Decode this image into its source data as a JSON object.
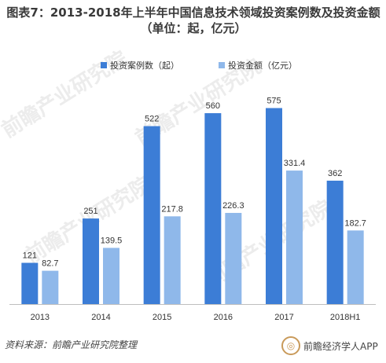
{
  "title": "图表7：2013-2018年上半年中国信息技术领域投资案例数及投资金额（单位：起，亿元）",
  "source": "资料来源：前瞻产业研究院整理",
  "brand": "前瞻经济学人APP",
  "colors": {
    "series1": "#3c7dd6",
    "series2": "#8fb8ea",
    "axis": "#bfbfbf",
    "label": "#333333"
  },
  "chart_data": {
    "type": "bar",
    "categories": [
      "2013",
      "2014",
      "2015",
      "2016",
      "2017",
      "2018H1"
    ],
    "series": [
      {
        "name": "投资案例数（起）",
        "values": [
          121,
          251,
          522,
          560,
          575,
          362
        ],
        "labels": [
          "121",
          "251",
          "522",
          "560",
          "575",
          "362"
        ]
      },
      {
        "name": "投资金额（亿元）",
        "values": [
          82.7,
          139.5,
          217.8,
          226.3,
          331.4,
          182.7
        ],
        "labels": [
          "82.7",
          "139.5",
          "217.8",
          "226.3",
          "331.4",
          "182.7"
        ]
      }
    ],
    "scales": [
      [
        0,
        650
      ],
      [
        0,
        550
      ]
    ],
    "legend_position": "top",
    "grid": false
  }
}
